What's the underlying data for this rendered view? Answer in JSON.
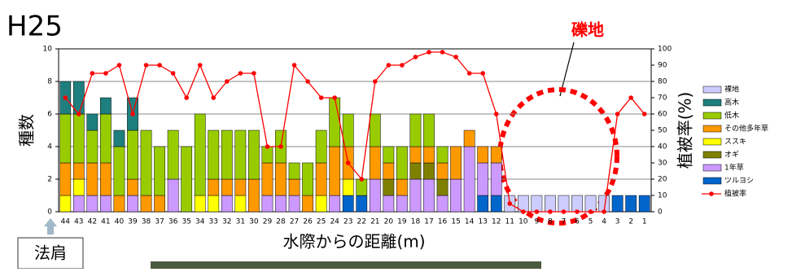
{
  "title": "H25",
  "annotation": "礫地",
  "bank_label": "法肩",
  "chart_data": {
    "type": "bar",
    "stacked": true,
    "x_label": "水際からの距離(m)",
    "y_label": "種数",
    "y2_label": "植被率(%)",
    "categories": [
      "44",
      "43",
      "42",
      "41",
      "40",
      "39",
      "38",
      "37",
      "36",
      "35",
      "34",
      "33",
      "32",
      "31",
      "30",
      "29",
      "28",
      "27",
      "26",
      "25",
      "24",
      "23",
      "22",
      "21",
      "20",
      "19",
      "18",
      "17",
      "16",
      "15",
      "14",
      "13",
      "12",
      "11",
      "10",
      "9",
      "8",
      "7",
      "6",
      "5",
      "4",
      "3",
      "2",
      "1"
    ],
    "ylim": [
      0,
      10
    ],
    "yticks": [
      0,
      2,
      4,
      6,
      8,
      10
    ],
    "y2lim": [
      0,
      100
    ],
    "y2ticks": [
      0,
      10,
      20,
      30,
      40,
      50,
      60,
      70,
      80,
      90,
      100
    ],
    "grid": true,
    "series": [
      {
        "name": "ツルヨシ",
        "color": "#0066cc",
        "values": [
          0,
          0,
          0,
          0,
          0,
          0,
          0,
          0,
          0,
          0,
          0,
          0,
          0,
          0,
          0,
          0,
          0,
          0,
          0,
          0,
          0,
          1,
          1,
          0,
          0,
          0,
          0,
          0,
          0,
          0,
          0,
          1,
          1,
          0,
          0,
          0,
          0,
          0,
          0,
          0,
          0,
          1,
          1,
          1
        ]
      },
      {
        "name": "1年草",
        "color": "#cc99ff",
        "values": [
          0,
          1,
          1,
          1,
          0,
          1,
          0,
          0,
          2,
          0,
          0,
          0,
          1,
          0,
          0,
          1,
          1,
          1,
          0,
          0,
          1,
          0,
          0,
          2,
          1,
          1,
          2,
          2,
          1,
          2,
          4,
          2,
          2,
          0,
          0,
          0,
          0,
          0,
          0,
          0,
          0,
          0,
          0,
          0
        ]
      },
      {
        "name": "オギ",
        "color": "#808000",
        "values": [
          0,
          0,
          0,
          0,
          0,
          0,
          0,
          0,
          0,
          0,
          0,
          0,
          0,
          0,
          0,
          0,
          0,
          0,
          0,
          0,
          0,
          0,
          0,
          0,
          1,
          0,
          1,
          1,
          1,
          0,
          0,
          0,
          0,
          0,
          0,
          0,
          0,
          0,
          0,
          0,
          0,
          0,
          0,
          0
        ]
      },
      {
        "name": "ススキ",
        "color": "#ffff00",
        "values": [
          1,
          1,
          0,
          0,
          0,
          0,
          0,
          0,
          0,
          0,
          1,
          1,
          0,
          1,
          0,
          0,
          0,
          0,
          0,
          1,
          0,
          1,
          0,
          0,
          0,
          0,
          0,
          0,
          0,
          0,
          0,
          0,
          0,
          0,
          0,
          0,
          0,
          0,
          0,
          0,
          0,
          0,
          0,
          0
        ]
      },
      {
        "name": "その他多年草",
        "color": "#ff9900",
        "values": [
          2,
          1,
          2,
          2,
          1,
          1,
          1,
          1,
          0,
          0,
          0,
          1,
          1,
          1,
          2,
          2,
          2,
          1,
          1,
          2,
          3,
          2,
          0,
          2,
          1,
          1,
          1,
          1,
          1,
          2,
          1,
          1,
          1,
          0,
          0,
          0,
          0,
          0,
          0,
          0,
          0,
          0,
          0,
          0
        ]
      },
      {
        "name": "低木",
        "color": "#99cc00",
        "values": [
          3,
          3,
          2,
          3,
          3,
          3,
          4,
          3,
          3,
          4,
          5,
          3,
          3,
          3,
          3,
          1,
          2,
          1,
          2,
          2,
          3,
          2,
          1,
          2,
          1,
          2,
          2,
          2,
          1,
          0,
          0,
          0,
          0,
          0,
          0,
          0,
          0,
          0,
          0,
          0,
          0,
          0,
          0,
          0
        ]
      },
      {
        "name": "高木",
        "color": "#1f7f7f",
        "values": [
          2,
          2,
          1,
          1,
          1,
          2,
          0,
          0,
          0,
          0,
          0,
          0,
          0,
          0,
          0,
          0,
          0,
          0,
          0,
          0,
          0,
          0,
          0,
          0,
          0,
          0,
          0,
          0,
          0,
          0,
          0,
          0,
          0,
          0,
          0,
          0,
          0,
          0,
          0,
          0,
          0,
          0,
          0,
          0
        ]
      },
      {
        "name": "裸地",
        "color": "#ccccff",
        "values": [
          0,
          0,
          0,
          0,
          0,
          0,
          0,
          0,
          0,
          0,
          0,
          0,
          0,
          0,
          0,
          0,
          0,
          0,
          0,
          0,
          0,
          0,
          0,
          0,
          0,
          0,
          0,
          0,
          0,
          0,
          0,
          0,
          0,
          1,
          1,
          1,
          1,
          1,
          1,
          1,
          1,
          0,
          0,
          0
        ]
      },
      {
        "name": "植被率",
        "color": "#ff0000",
        "axis": "y2",
        "values": [
          70,
          60,
          85,
          85,
          90,
          60,
          90,
          90,
          85,
          70,
          90,
          70,
          80,
          85,
          85,
          40,
          40,
          90,
          80,
          70,
          70,
          30,
          20,
          80,
          90,
          90,
          95,
          98,
          98,
          95,
          85,
          85,
          60,
          5,
          0,
          0,
          0,
          0,
          0,
          0,
          0,
          60,
          70,
          60
        ]
      }
    ]
  }
}
